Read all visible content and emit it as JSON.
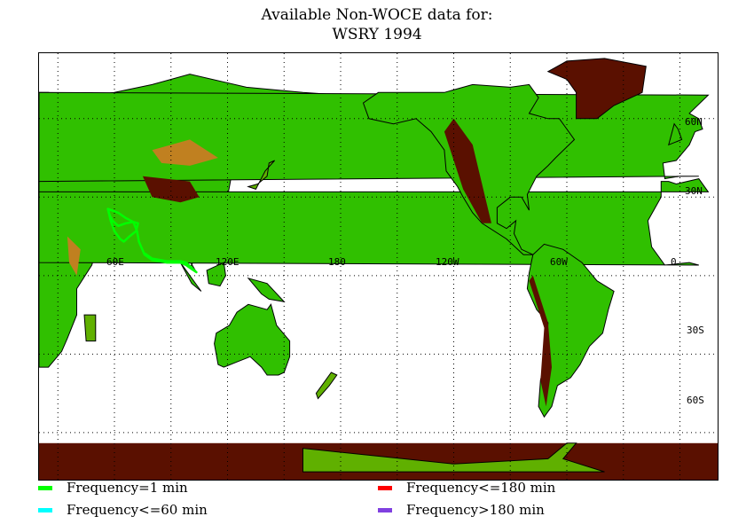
{
  "title": {
    "line1": "Available Non-WOCE data for:",
    "line2": "WSRY 1994"
  },
  "map": {
    "longitude_labels": [
      "60E",
      "120E",
      "180",
      "120W",
      "60W",
      "0"
    ],
    "latitude_labels": [
      "60N",
      "30N",
      "30S",
      "60S"
    ],
    "gridlines": "dotted",
    "cruise_track": {
      "frequency": "Frequency=1 min",
      "color": "#00ff00",
      "path_lonlat": [
        [
          56.5,
          25.5
        ],
        [
          57.5,
          23
        ],
        [
          59,
          21
        ],
        [
          62,
          19
        ],
        [
          66,
          20
        ],
        [
          70,
          20.5
        ],
        [
          72.5,
          20
        ],
        [
          71.5,
          17
        ],
        [
          68,
          15
        ],
        [
          65,
          13
        ],
        [
          63,
          14
        ],
        [
          60,
          17
        ],
        [
          58,
          21
        ],
        [
          56.5,
          25.5
        ],
        [
          62,
          24
        ],
        [
          66,
          22
        ],
        [
          70,
          20.5
        ],
        [
          72,
          17
        ],
        [
          73,
          13
        ],
        [
          76,
          8
        ],
        [
          80,
          6
        ],
        [
          88,
          5
        ],
        [
          95,
          5
        ],
        [
          98,
          4
        ],
        [
          100,
          3
        ],
        [
          101,
          2.5
        ],
        [
          103.5,
          1.3
        ],
        [
          101,
          3
        ],
        [
          98,
          5
        ],
        [
          95,
          5.5
        ],
        [
          88,
          5.5
        ],
        [
          80,
          6.5
        ],
        [
          76,
          8.5
        ]
      ]
    }
  },
  "legend": [
    {
      "label": "Frequency=1 min",
      "color": "#00ff00"
    },
    {
      "label": "Frequency<=60 min",
      "color": "#00ffff"
    },
    {
      "label": "Frequency<=180 min",
      "color": "#ff0000"
    },
    {
      "label": "Frequency>180 min",
      "color": "#8040e0"
    }
  ],
  "terrain_colors": {
    "ocean": "#ffffff",
    "lowland": "#30c000",
    "plain": "#60b000",
    "hill": "#a0a000",
    "upland": "#c08020",
    "mountain": "#5a1000",
    "ice": "#5a1000",
    "coast": "#000000"
  }
}
